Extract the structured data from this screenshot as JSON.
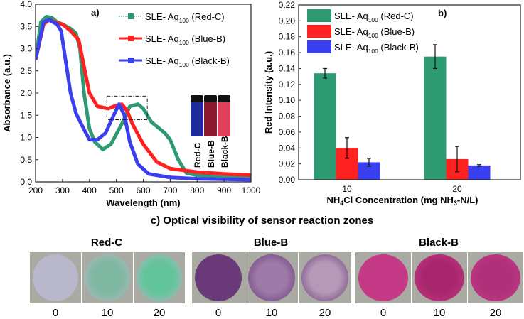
{
  "chart_data": [
    {
      "type": "line",
      "panel_label": "a)",
      "xlabel": "Wavelength (nm)",
      "ylabel": "Absorbance (a.u.)",
      "xlim": [
        200,
        1000
      ],
      "ylim": [
        0,
        4.0
      ],
      "xticks": [
        200,
        300,
        400,
        500,
        600,
        700,
        800,
        900,
        1000
      ],
      "yticks": [
        "0.0",
        "0.5",
        "1.0",
        "1.5",
        "2.0",
        "2.5",
        "3.0",
        "3.5",
        "4.0"
      ],
      "legend": "top-right",
      "series": [
        {
          "name": "SLE- Aq100 (Red-C)",
          "name_main": "SLE- Aq",
          "name_sub": "100",
          "name_tail": " (Red-C)",
          "color": "#2e9a72",
          "x": [
            200,
            220,
            240,
            260,
            280,
            300,
            330,
            350,
            365,
            380,
            400,
            420,
            450,
            480,
            520,
            550,
            580,
            600,
            630,
            680,
            700,
            730,
            760,
            800,
            900,
            1000
          ],
          "y": [
            2.75,
            3.6,
            3.72,
            3.7,
            3.6,
            3.55,
            3.45,
            3.35,
            3.0,
            2.0,
            1.2,
            0.9,
            0.73,
            0.85,
            1.3,
            1.7,
            1.75,
            1.65,
            1.35,
            1.1,
            0.95,
            0.5,
            0.2,
            0.15,
            0.13,
            0.1
          ]
        },
        {
          "name": "SLE- Aq100 (Blue-B)",
          "name_main": "SLE- Aq",
          "name_sub": "100",
          "name_tail": " (Blue-B)",
          "color": "#ff2020",
          "x": [
            200,
            230,
            250,
            280,
            300,
            330,
            360,
            380,
            400,
            430,
            470,
            500,
            520,
            540,
            560,
            600,
            650,
            700,
            800,
            900,
            1000
          ],
          "y": [
            2.75,
            3.55,
            3.65,
            3.58,
            3.55,
            3.4,
            3.2,
            2.6,
            2.0,
            1.7,
            1.65,
            1.72,
            1.75,
            1.6,
            1.3,
            0.85,
            0.45,
            0.3,
            0.22,
            0.18,
            0.15
          ]
        },
        {
          "name": "SLE- Aq100 (Black-B)",
          "name_main": "SLE- Aq",
          "name_sub": "100",
          "name_tail": " (Black-B)",
          "color": "#3a3ff0",
          "x": [
            200,
            230,
            250,
            280,
            295,
            310,
            330,
            350,
            370,
            400,
            430,
            460,
            490,
            510,
            530,
            550,
            580,
            620,
            700,
            800,
            1000
          ],
          "y": [
            2.75,
            3.6,
            3.65,
            3.55,
            3.4,
            2.8,
            2.0,
            1.55,
            1.3,
            0.95,
            0.95,
            1.1,
            1.5,
            1.75,
            1.5,
            0.9,
            0.4,
            0.18,
            0.1,
            0.07,
            0.05
          ]
        }
      ],
      "inset_labels": [
        "Red-C",
        "Blue-B",
        "Black-B"
      ]
    },
    {
      "type": "bar",
      "panel_label": "b)",
      "ylabel": "Red Intensity (a.u.)",
      "xlabel_parts": [
        "NH",
        "4",
        "Cl Concentration (mg NH",
        "3",
        "-N/L)"
      ],
      "categories": [
        "10",
        "20"
      ],
      "ylim": [
        0,
        0.22
      ],
      "yticks": [
        "0.00",
        "0.02",
        "0.04",
        "0.06",
        "0.08",
        "0.10",
        "0.12",
        "0.14",
        "0.16",
        "0.18",
        "0.20",
        "0.22"
      ],
      "legend": "top-left",
      "series": [
        {
          "name": "SLE- Aq100 (Red-C)",
          "name_main": "SLE- Aq",
          "name_sub": "100",
          "name_tail": " (Red-C)",
          "color": "#2e9a72",
          "values": [
            0.134,
            0.155
          ],
          "errors": [
            0.006,
            0.015
          ]
        },
        {
          "name": "SLE- Aq100 (Blue-B)",
          "name_main": "SLE- Aq",
          "name_sub": "100",
          "name_tail": " (Blue-B)",
          "color": "#ff2020",
          "values": [
            0.04,
            0.026
          ],
          "errors": [
            0.013,
            0.016
          ]
        },
        {
          "name": "SLE- Aq100 (Black-B)",
          "name_main": "SLE- Aq",
          "name_sub": "100",
          "name_tail": " (Black-B)",
          "color": "#3a3ff0",
          "values": [
            0.022,
            0.018
          ],
          "errors": [
            0.005,
            0.001
          ]
        }
      ]
    }
  ],
  "panel_c": {
    "title": "c) Optical visibility of sensor reaction zones",
    "groups": [
      {
        "label": "Red-C",
        "concentrations": [
          "0",
          "10",
          "20"
        ],
        "colors": [
          "#b8b7cc",
          "#7fb8a0",
          "#62c49a"
        ]
      },
      {
        "label": "Blue-B",
        "concentrations": [
          "0",
          "10",
          "20"
        ],
        "colors": [
          "#6a3a78",
          "#9d7aa8",
          "#b59ab8"
        ]
      },
      {
        "label": "Black-B",
        "concentrations": [
          "0",
          "10",
          "20"
        ],
        "colors": [
          "#c43a86",
          "#a8266c",
          "#b0307a"
        ]
      }
    ]
  }
}
